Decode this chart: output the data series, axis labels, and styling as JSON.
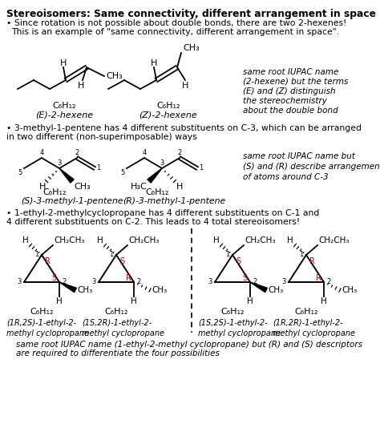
{
  "title": "Stereoisomers: Same connectivity, different arrangement in space",
  "line1": "• Since rotation is not possible about double bonds, there are two 2-hexenes!",
  "line2": "This is an example of \"same connectivity, different arrangement in space\".",
  "sec2_line1": "• 3-methyl-1-pentene has 4 different substituents on C-3, which can be arranged",
  "sec2_line2": "in two different (non-superimposable) ways",
  "sec3_line1": "• 1-ethyl-2-methylcyclopropane has 4 different substituents on C-1 and",
  "sec3_line2": "4 different substituents on C-2. This leads to 4 total stereoisomers!",
  "hexene_right": [
    "same root IUPAC name",
    "(2-hexene) but the terms",
    "(E) and (Z) distinguish",
    "the stereochemistry",
    "about the double bond"
  ],
  "pentene_right": [
    "same root IUPAC name but",
    "(S) and (R) describe arrangement",
    "of atoms around C-3"
  ],
  "bottom_note1": "same root IUPAC name (1-ethyl-2-methyl cyclopropane) but (R) and (S) descriptors",
  "bottom_note2": "are required to differentiate the four possibilities",
  "bg_color": "#ffffff",
  "red_color": "#cc0000"
}
